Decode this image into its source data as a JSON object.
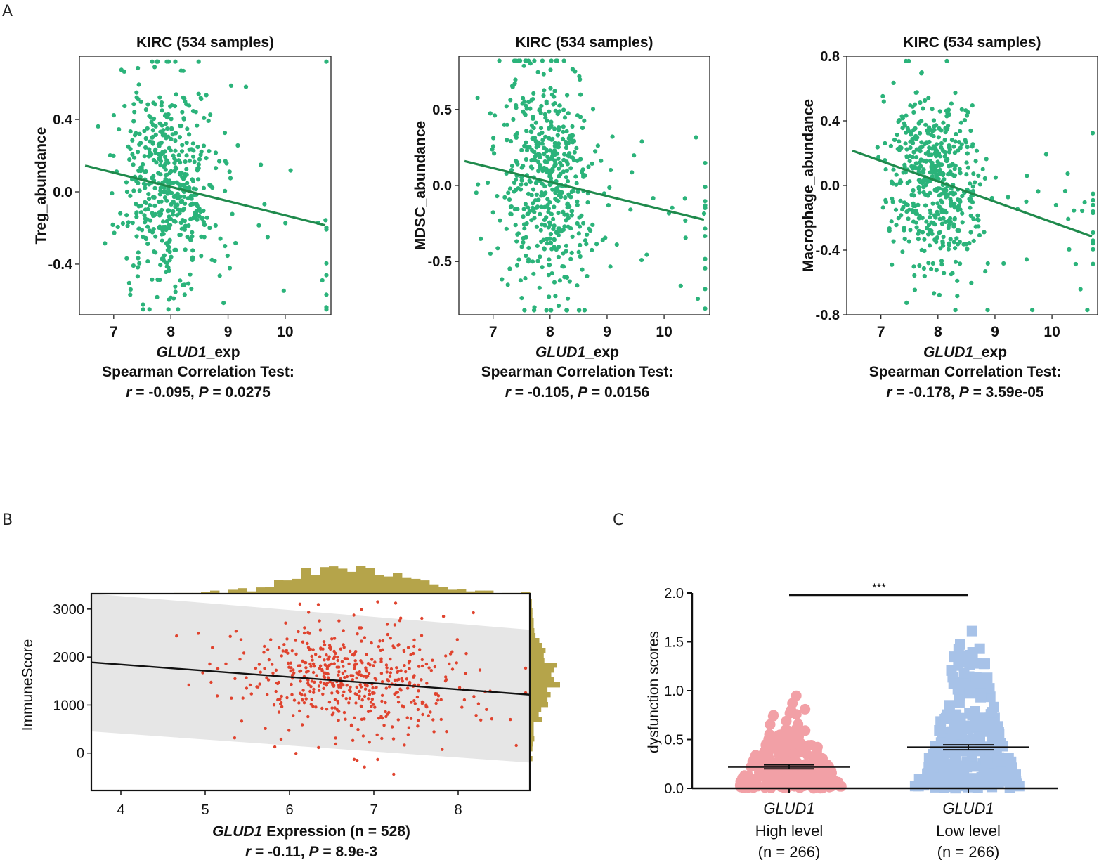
{
  "panels": {
    "A": "A",
    "B": "B",
    "C": "C"
  },
  "colors": {
    "green": "#2bb37a",
    "line_green": "#1f8a4c",
    "red": "#e0432e",
    "olive": "#b5a44a",
    "band": "#e6e6e6",
    "pink": "#f2a0a6",
    "blue": "#a7c2e8",
    "black": "#111111"
  },
  "chart_data": [
    {
      "type": "scatter",
      "id": "A1",
      "title": "KIRC (534 samples)",
      "xlabel_italic": "GLUD1",
      "xlabel_rest": "_exp",
      "ylabel": "Treg_abundance",
      "xlim": [
        6.4,
        10.8
      ],
      "ylim": [
        -0.68,
        0.75
      ],
      "xticks": [
        "7",
        "8",
        "9",
        "10"
      ],
      "yticks": [
        "-0.4",
        "0.0",
        "0.4"
      ],
      "stat_line1": "Spearman Correlation Test:",
      "stat_r_label": "r",
      "stat_r_value": " = -0.095, ",
      "stat_p_label": "P",
      "stat_p_value": " = 0.0275",
      "fit": {
        "x": [
          6.5,
          10.7
        ],
        "y": [
          0.145,
          -0.185
        ]
      },
      "n_points": 534,
      "cx": 7.95,
      "sx": 0.42,
      "ysd": 0.3,
      "slope": -0.078,
      "intercept": 0.655,
      "seed": 11
    },
    {
      "type": "scatter",
      "id": "A2",
      "title": "KIRC (534 samples)",
      "xlabel_italic": "GLUD1",
      "xlabel_rest": "_exp",
      "ylabel": "MDSC_abundance",
      "xlim": [
        6.4,
        10.8
      ],
      "ylim": [
        -0.85,
        0.85
      ],
      "xticks": [
        "7",
        "8",
        "9",
        "10"
      ],
      "yticks": [
        "-0.5",
        "0.0",
        "0.5"
      ],
      "stat_line1": "Spearman Correlation Test:",
      "stat_r_label": "r",
      "stat_r_value": " = -0.105, ",
      "stat_p_label": "P",
      "stat_p_value": " = 0.0156",
      "fit": {
        "x": [
          6.5,
          10.7
        ],
        "y": [
          0.16,
          -0.225
        ]
      },
      "n_points": 534,
      "cx": 7.95,
      "sx": 0.42,
      "ysd": 0.36,
      "slope": -0.092,
      "intercept": 0.758,
      "seed": 23
    },
    {
      "type": "scatter",
      "id": "A3",
      "title": "KIRC (534 samples)",
      "xlabel_italic": "GLUD1",
      "xlabel_rest": "_exp",
      "ylabel": "Macrophage_abundance",
      "xlim": [
        6.4,
        10.8
      ],
      "ylim": [
        -0.8,
        0.8
      ],
      "xticks": [
        "7",
        "8",
        "9",
        "10"
      ],
      "yticks": [
        "-0.8",
        "-0.4",
        "0.0",
        "0.4",
        "0.8"
      ],
      "stat_line1": "Spearman Correlation Test:",
      "stat_r_label": "r",
      "stat_r_value": " = -0.178, ",
      "stat_p_label": "P",
      "stat_p_value": " = 3.59e-05",
      "fit": {
        "x": [
          6.5,
          10.7
        ],
        "y": [
          0.215,
          -0.315
        ]
      },
      "n_points": 534,
      "cx": 7.95,
      "sx": 0.42,
      "ysd": 0.28,
      "slope": -0.126,
      "intercept": 1.034,
      "seed": 37
    },
    {
      "type": "scatter",
      "id": "B",
      "xlabel_italic": "GLUD1",
      "xlabel_rest": " Expression (n = 528)",
      "ylabel": "ImmuneScore",
      "xlim": [
        3.65,
        8.85
      ],
      "ylim": [
        -780,
        3320
      ],
      "xticks": [
        "4",
        "5",
        "6",
        "7",
        "8"
      ],
      "yticks": [
        "0",
        "1000",
        "2000",
        "3000"
      ],
      "stat_r_label": "r",
      "stat_r_value": " = -0.11, ",
      "stat_p_label": "P",
      "stat_p_value": " = 8.9e-3",
      "fit": {
        "x": [
          3.65,
          8.85
        ],
        "y": [
          1890,
          1215
        ]
      },
      "band": {
        "x": [
          3.65,
          8.85
        ],
        "upper": [
          3320,
          2570
        ],
        "lower": [
          450,
          -200
        ]
      },
      "n_points": 528,
      "cx": 6.8,
      "sx": 0.75,
      "ysd": 620,
      "slope": -130,
      "intercept": 2364,
      "seed": 53
    },
    {
      "type": "dot-strip",
      "id": "C",
      "ylabel": "dysfunction scores",
      "ylim": [
        0,
        2.0
      ],
      "yticks": [
        "0.0",
        "0.5",
        "1.0",
        "1.5",
        "2.0"
      ],
      "significance": "***",
      "groups": [
        {
          "gene": "GLUD1",
          "label": "High level",
          "n": "(n = 266)",
          "mean": 0.22,
          "sem": 0.02,
          "shape": "circle"
        },
        {
          "gene": "GLUD1",
          "label": "Low level",
          "n": "(n = 266)",
          "mean": 0.42,
          "sem": 0.025,
          "shape": "square"
        }
      ]
    }
  ]
}
